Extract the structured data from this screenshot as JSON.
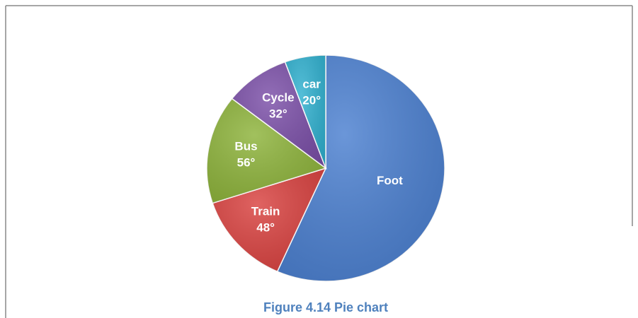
{
  "chart_data": {
    "type": "pie",
    "title": "Figure 4.14 Pie chart",
    "categories": [
      "Foot",
      "Train",
      "Bus",
      "Cycle",
      "car"
    ],
    "values": [
      204,
      48,
      56,
      32,
      20
    ],
    "value_labels": [
      null,
      "48°",
      "56°",
      "32°",
      "20°"
    ],
    "colors": [
      "#4a7fd0",
      "#d9413f",
      "#8db33a",
      "#7b4fa8",
      "#2fb0cf"
    ]
  }
}
